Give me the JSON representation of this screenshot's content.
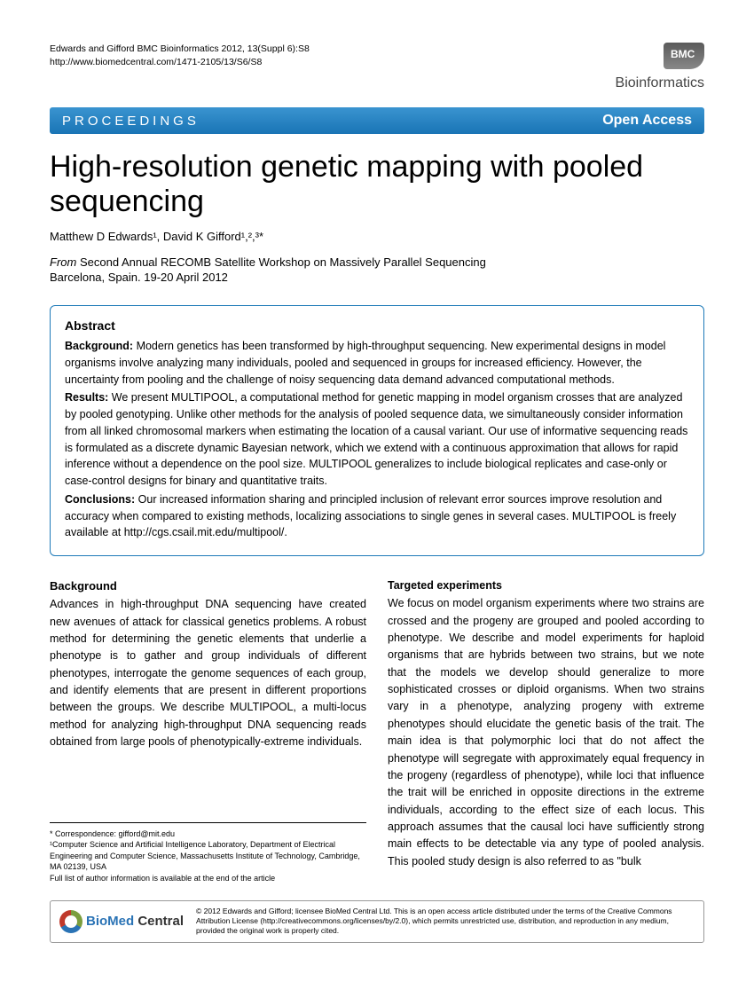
{
  "header": {
    "citation_line1": "Edwards and Gifford BMC Bioinformatics 2012, 13(Suppl 6):S8",
    "citation_line2": "http://www.biomedcentral.com/1471-2105/13/S6/S8",
    "journal_bmc": "BMC",
    "journal_name": "Bioinformatics"
  },
  "banner": {
    "left": "PROCEEDINGS",
    "right": "Open Access"
  },
  "title": "High-resolution genetic mapping with pooled sequencing",
  "authors": "Matthew D Edwards¹, David K Gifford¹,²,³*",
  "from": {
    "label": "From",
    "event": " Second Annual RECOMB Satellite Workshop on Massively Parallel Sequencing",
    "location": "Barcelona, Spain. 19-20 April 2012"
  },
  "abstract": {
    "heading": "Abstract",
    "background_label": "Background: ",
    "background": "Modern genetics has been transformed by high-throughput sequencing. New experimental designs in model organisms involve analyzing many individuals, pooled and sequenced in groups for increased efficiency. However, the uncertainty from pooling and the challenge of noisy sequencing data demand advanced computational methods.",
    "results_label": "Results: ",
    "results": "We present MULTIPOOL, a computational method for genetic mapping in model organism crosses that are analyzed by pooled genotyping. Unlike other methods for the analysis of pooled sequence data, we simultaneously consider information from all linked chromosomal markers when estimating the location of a causal variant. Our use of informative sequencing reads is formulated as a discrete dynamic Bayesian network, which we extend with a continuous approximation that allows for rapid inference without a dependence on the pool size. MULTIPOOL generalizes to include biological replicates and case-only or case-control designs for binary and quantitative traits.",
    "conclusions_label": "Conclusions: ",
    "conclusions": "Our increased information sharing and principled inclusion of relevant error sources improve resolution and accuracy when compared to existing methods, localizing associations to single genes in several cases. MULTIPOOL is freely available at http://cgs.csail.mit.edu/multipool/."
  },
  "body": {
    "background_heading": "Background",
    "background_text": "Advances in high-throughput DNA sequencing have created new avenues of attack for classical genetics problems. A robust method for determining the genetic elements that underlie a phenotype is to gather and group individuals of different phenotypes, interrogate the genome sequences of each group, and identify elements that are present in different proportions between the groups. We describe MULTIPOOL, a multi-locus method for analyzing high-throughput DNA sequencing reads obtained from large pools of phenotypically-extreme individuals.",
    "targeted_heading": "Targeted experiments",
    "targeted_text": "We focus on model organism experiments where two strains are crossed and the progeny are grouped and pooled according to phenotype. We describe and model experiments for haploid organisms that are hybrids between two strains, but we note that the models we develop should generalize to more sophisticated crosses or diploid organisms. When two strains vary in a phenotype, analyzing progeny with extreme phenotypes should elucidate the genetic basis of the trait. The main idea is that polymorphic loci that do not affect the phenotype will segregate with approximately equal frequency in the progeny (regardless of phenotype), while loci that influence the trait will be enriched in opposite directions in the extreme individuals, according to the effect size of each locus. This approach assumes that the causal loci have sufficiently strong main effects to be detectable via any type of pooled analysis. This pooled study design is also referred to as \"bulk"
  },
  "footnote": {
    "correspondence": "* Correspondence: gifford@mit.edu",
    "affiliation": "¹Computer Science and Artificial Intelligence Laboratory, Department of Electrical Engineering and Computer Science, Massachusetts Institute of Technology, Cambridge, MA 02139, USA",
    "full_list": "Full list of author information is available at the end of the article"
  },
  "footer": {
    "logo_bio": "BioMed",
    "logo_central": " Central",
    "copyright": "© 2012 Edwards and Gifford; licensee BioMed Central Ltd. This is an open access article distributed under the terms of the Creative Commons Attribution License (http://creativecommons.org/licenses/by/2.0), which permits unrestricted use, distribution, and reproduction in any medium, provided the original work is properly cited."
  }
}
